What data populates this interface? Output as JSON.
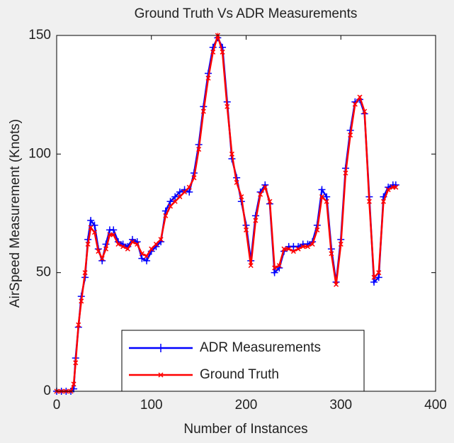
{
  "chart_data": {
    "type": "line",
    "title": "Ground Truth Vs ADR Measurements",
    "xlabel": "Number of Instances",
    "ylabel": "AirSpeed Measurement (Knots)",
    "x": [
      0,
      5,
      10,
      15,
      18,
      20,
      23,
      26,
      30,
      33,
      36,
      40,
      44,
      48,
      52,
      56,
      60,
      65,
      70,
      75,
      80,
      85,
      90,
      95,
      100,
      105,
      110,
      115,
      120,
      125,
      130,
      135,
      140,
      145,
      150,
      155,
      160,
      165,
      170,
      175,
      180,
      185,
      190,
      195,
      200,
      205,
      210,
      215,
      220,
      225,
      230,
      235,
      240,
      245,
      250,
      255,
      260,
      265,
      270,
      275,
      280,
      285,
      290,
      295,
      300,
      305,
      310,
      315,
      320,
      325,
      330,
      335,
      340,
      345,
      350,
      355,
      358
    ],
    "series": [
      {
        "name": "ADR Measurements",
        "color": "#0000ff",
        "marker": "+",
        "values": [
          0,
          0,
          0,
          0,
          1,
          14,
          27,
          40,
          48,
          64,
          72,
          70,
          60,
          55,
          62,
          68,
          68,
          63,
          62,
          61,
          64,
          63,
          56,
          55,
          59,
          61,
          63,
          76,
          80,
          82,
          84,
          85,
          84,
          92,
          104,
          120,
          134,
          145,
          149,
          145,
          122,
          98,
          90,
          80,
          70,
          55,
          74,
          84,
          87,
          79,
          50,
          52,
          59,
          61,
          61,
          61,
          62,
          62,
          63,
          70,
          85,
          82,
          60,
          46,
          64,
          94,
          110,
          122,
          123,
          117,
          82,
          46,
          48,
          82,
          86,
          87,
          87
        ]
      },
      {
        "name": "Ground Truth",
        "color": "#ff0000",
        "marker": "x",
        "values": [
          0,
          0,
          0,
          0,
          3,
          12,
          28,
          38,
          50,
          62,
          69,
          67,
          59,
          56,
          60,
          66,
          66,
          62,
          61,
          60,
          63,
          62,
          58,
          57,
          60,
          62,
          64,
          74,
          78,
          80,
          82,
          84,
          86,
          90,
          102,
          118,
          132,
          143,
          150,
          143,
          120,
          100,
          88,
          82,
          68,
          53,
          72,
          83,
          86,
          80,
          52,
          53,
          60,
          60,
          59,
          60,
          61,
          61,
          62,
          68,
          82,
          80,
          58,
          45,
          62,
          92,
          108,
          121,
          124,
          118,
          80,
          48,
          50,
          80,
          85,
          86,
          86
        ]
      }
    ],
    "xlim": [
      0,
      400
    ],
    "xticks": [
      0,
      100,
      200,
      300,
      400
    ],
    "ylim": [
      0,
      150
    ],
    "yticks": [
      0,
      50,
      100,
      150
    ],
    "grid": false,
    "legend": "lower center"
  }
}
